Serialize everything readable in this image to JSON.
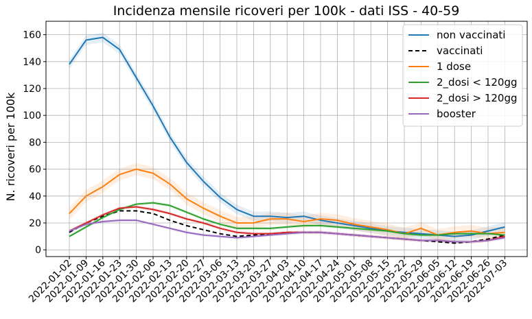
{
  "chart_data": {
    "type": "line",
    "title": "Incidenza mensile ricoveri per 100k - dati ISS - 40-59",
    "xlabel": "",
    "ylabel": "N. ricoveri per 100k",
    "ylim": [
      -5,
      170
    ],
    "yticks": [
      0,
      20,
      40,
      60,
      80,
      100,
      120,
      140,
      160
    ],
    "grid": true,
    "legend_position": "top-right",
    "x": [
      "2022-01-02",
      "2022-01-09",
      "2022-01-16",
      "2022-01-23",
      "2022-01-30",
      "2022-02-06",
      "2022-02-13",
      "2022-02-20",
      "2022-02-27",
      "2022-03-06",
      "2022-03-13",
      "2022-03-20",
      "2022-03-27",
      "2022-04-03",
      "2022-04-10",
      "2022-04-17",
      "2022-04-24",
      "2022-05-01",
      "2022-05-08",
      "2022-05-15",
      "2022-05-22",
      "2022-05-29",
      "2022-06-05",
      "2022-06-12",
      "2022-06-19",
      "2022-06-26",
      "2022-07-03"
    ],
    "series": [
      {
        "name": "non vaccinati",
        "color": "#1f77b4",
        "dash": false,
        "band": 3.5,
        "values": [
          138,
          156,
          158,
          149,
          128,
          107,
          84,
          65,
          51,
          39,
          30,
          25,
          25,
          24,
          25,
          22,
          20,
          18,
          16,
          14,
          13,
          12,
          11,
          10,
          11,
          14,
          17
        ]
      },
      {
        "name": "vaccinati",
        "color": "#000000",
        "dash": true,
        "band": 0,
        "values": [
          13,
          20,
          25,
          29,
          29,
          27,
          22,
          18,
          15,
          12,
          10,
          11,
          12,
          13,
          13,
          13,
          12,
          11,
          10,
          9,
          8,
          7,
          6,
          5,
          6,
          8,
          11
        ]
      },
      {
        "name": "1 dose",
        "color": "#ff7f0e",
        "dash": false,
        "band": 4.5,
        "values": [
          27,
          40,
          47,
          56,
          60,
          57,
          49,
          38,
          31,
          25,
          20,
          20,
          23,
          23,
          21,
          23,
          22,
          19,
          17,
          15,
          12,
          16,
          11,
          13,
          14,
          12,
          13
        ]
      },
      {
        "name": "2_dosi < 120gg",
        "color": "#2ca02c",
        "dash": false,
        "band": 1.2,
        "values": [
          10,
          17,
          24,
          30,
          34,
          35,
          33,
          28,
          23,
          19,
          16,
          16,
          16,
          17,
          18,
          18,
          17,
          16,
          15,
          14,
          12,
          11,
          11,
          12,
          12,
          12,
          11
        ]
      },
      {
        "name": "2_dosi > 120gg",
        "color": "#d62728",
        "dash": false,
        "band": 1.2,
        "values": [
          14,
          20,
          26,
          31,
          32,
          30,
          27,
          23,
          20,
          16,
          13,
          12,
          12,
          13,
          13,
          13,
          12,
          11,
          10,
          9,
          8,
          7,
          7,
          6,
          6,
          7,
          10
        ]
      },
      {
        "name": "booster",
        "color": "#9467bd",
        "dash": false,
        "band": 1.2,
        "values": [
          14,
          19,
          21,
          22,
          22,
          19,
          16,
          13,
          11,
          10,
          9,
          10,
          11,
          12,
          13,
          13,
          12,
          11,
          10,
          9,
          8,
          7,
          7,
          6,
          6,
          7,
          9
        ]
      }
    ]
  }
}
